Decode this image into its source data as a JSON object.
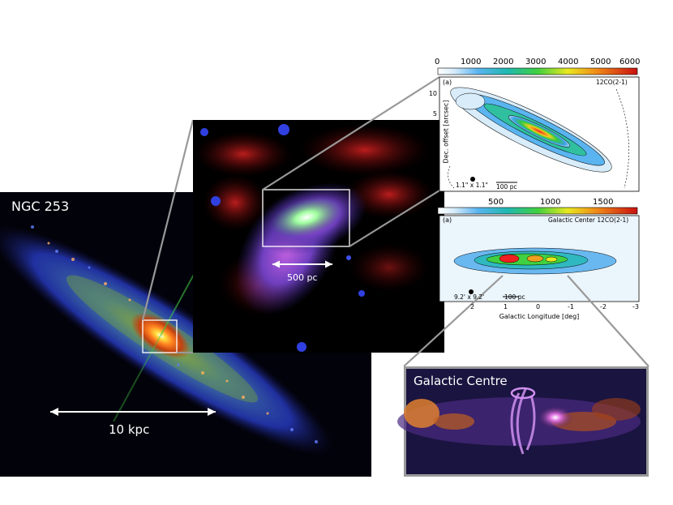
{
  "galaxy": {
    "title": "NGC 253",
    "scale_label": "10 kpc"
  },
  "inset": {
    "scale_label": "500 pc"
  },
  "map_top": {
    "colorbar_ticks": [
      "0",
      "1000",
      "2000",
      "3000",
      "4000",
      "5000",
      "6000"
    ],
    "panel_tag": "(a)",
    "line_label": "12CO(2-1)",
    "ylabel": "Dec. offset [arcsec]",
    "yticks": [
      "10",
      "5",
      "0",
      "-5",
      "-10"
    ],
    "beam_label": "1.1\" x 1.1\"",
    "scalebar_label": "100 pc"
  },
  "map_bottom": {
    "colorbar_ticks": [
      "0",
      "500",
      "1000",
      "1500"
    ],
    "panel_tag": "(a)",
    "line_label": "Galactic Center 12CO(2-1)",
    "ylabel": "Gal. Latitude [deg]",
    "yticks": [
      "1",
      "0",
      "-1"
    ],
    "xticks": [
      "3",
      "2",
      "1",
      "0",
      "-1",
      "-2",
      "-3"
    ],
    "xlabel": "Galactic Longitude [deg]",
    "beam_label": "9.2' x 9.2'",
    "scalebar_label": "100 pc"
  },
  "galactic_centre": {
    "title": "Galactic Centre"
  }
}
